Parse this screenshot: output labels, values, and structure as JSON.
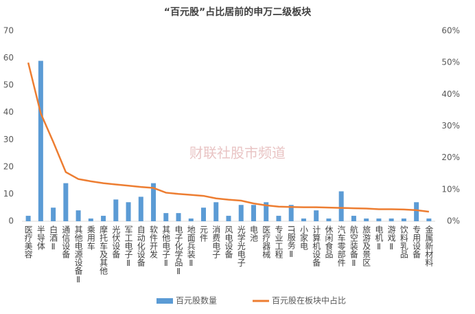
{
  "chart_data": {
    "type": "bar_line",
    "title": "“百元股”占比居前的申万二级板块",
    "watermark": "财联社股市频道",
    "categories": [
      "医疗美容",
      "半导体",
      "白酒Ⅱ",
      "通信设备",
      "其他电源设备Ⅱ",
      "乘用车",
      "摩托车及其他",
      "光伏设备",
      "军工电子Ⅱ",
      "自动化设备",
      "软件开发",
      "其他电子Ⅱ",
      "电子化学品Ⅱ",
      "地面兵装Ⅱ",
      "元件",
      "消费电子",
      "风电设备",
      "光学光电子",
      "电池",
      "医疗器械",
      "专业工程",
      "IT服务Ⅱ",
      "小家电",
      "计算机设备",
      "休闲食品",
      "汽车零部件",
      "航空装备Ⅱ",
      "旅游及景区",
      "电机Ⅱ",
      "游戏Ⅱ",
      "饮料乳品",
      "专用设备",
      "金属新材料"
    ],
    "series": [
      {
        "name": "百元股数量",
        "color": "#5b9bd5",
        "values": [
          2,
          59,
          5,
          14,
          4,
          1,
          2,
          8,
          7,
          9,
          14,
          3,
          3,
          1,
          5,
          7,
          2,
          6,
          6,
          7,
          2,
          6,
          1,
          4,
          1,
          11,
          2,
          1,
          1,
          1,
          1,
          7,
          1
        ]
      },
      {
        "name": "百元股在板块中占比",
        "color": "#ed7d31",
        "axis": "y2",
        "values": [
          50,
          34,
          25,
          15.5,
          13.3,
          12.6,
          12,
          11.6,
          11.2,
          10.8,
          10.5,
          9,
          8.6,
          8.3,
          8,
          7.2,
          6.8,
          6.5,
          5.6,
          5,
          4.6,
          4.5,
          4.4,
          4.4,
          4.3,
          4.2,
          4.1,
          4,
          3.8,
          3.8,
          3.7,
          3.5,
          3
        ]
      }
    ],
    "ylim": [
      0,
      70
    ],
    "yticks": [
      0,
      10,
      20,
      30,
      40,
      50,
      60,
      70
    ],
    "y2lim": [
      0,
      60
    ],
    "y2ticks": [
      {
        "value": 0,
        "label": "0%"
      },
      {
        "value": 10,
        "label": "10%"
      },
      {
        "value": 20,
        "label": "20%"
      },
      {
        "value": 30,
        "label": "30%"
      },
      {
        "value": 40,
        "label": "40%"
      },
      {
        "value": 50,
        "label": "50%"
      },
      {
        "value": 60,
        "label": "60%"
      }
    ],
    "legend": "bottom"
  }
}
